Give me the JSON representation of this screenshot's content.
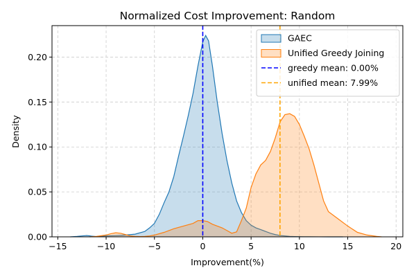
{
  "chart_data": {
    "type": "area",
    "title": "Normalized Cost Improvement: Random",
    "xlabel": "Improvement(%)",
    "ylabel": "Density",
    "xlim": [
      -15.6,
      20.7
    ],
    "ylim": [
      0,
      0.235
    ],
    "xticks": [
      -15,
      -10,
      -5,
      0,
      5,
      10,
      15,
      20
    ],
    "yticks": [
      0.0,
      0.05,
      0.1,
      0.15,
      0.2
    ],
    "ytick_labels": [
      "0.00",
      "0.05",
      "0.10",
      "0.15",
      "0.20"
    ],
    "grid": true,
    "legend_position": "top-right",
    "series": [
      {
        "name": "GAEC",
        "style": "kde-fill",
        "color": "#1f77b4",
        "x": [
          -13.7,
          -13,
          -12.5,
          -12,
          -11.5,
          -11,
          -10,
          -9,
          -8,
          -7,
          -6,
          -5.5,
          -5,
          -4.5,
          -4,
          -3.5,
          -3,
          -2.5,
          -2,
          -1.5,
          -1,
          -0.5,
          0,
          0.3,
          0.6,
          1,
          1.5,
          2,
          2.5,
          3,
          3.5,
          4,
          4.5,
          5,
          5.5,
          6,
          6.5,
          7,
          7.5,
          8,
          8.5,
          9,
          9.5,
          10,
          10.5,
          11,
          12,
          13,
          14,
          14.5
        ],
        "y": [
          0,
          0.0005,
          0.001,
          0.0015,
          0.0008,
          0.0003,
          0.001,
          0.0015,
          0.002,
          0.003,
          0.006,
          0.01,
          0.015,
          0.025,
          0.038,
          0.05,
          0.067,
          0.09,
          0.112,
          0.135,
          0.16,
          0.19,
          0.217,
          0.224,
          0.218,
          0.19,
          0.15,
          0.115,
          0.085,
          0.06,
          0.04,
          0.027,
          0.018,
          0.013,
          0.01,
          0.008,
          0.006,
          0.004,
          0.0025,
          0.0015,
          0.001,
          0.0005,
          0.0003,
          0.0002,
          0.0001,
          0.0001,
          5e-05,
          2e-05,
          1e-05,
          0
        ]
      },
      {
        "name": "Unified Greedy Joining",
        "style": "kde-fill",
        "color": "#ff7f0e",
        "x": [
          -11.7,
          -11,
          -10,
          -9.5,
          -9,
          -8.5,
          -8,
          -7.5,
          -7,
          -6.5,
          -6,
          -5.5,
          -5,
          -4,
          -3,
          -2,
          -1,
          -0.5,
          0,
          0.5,
          1,
          1.5,
          2,
          2.5,
          3,
          3.5,
          4,
          4.5,
          5,
          5.5,
          6,
          6.5,
          7,
          7.5,
          8,
          8.5,
          9,
          9.5,
          10,
          10.5,
          11,
          11.5,
          12,
          12.5,
          13,
          14,
          15,
          16,
          17,
          18,
          18.5
        ],
        "y": [
          0,
          0.0005,
          0.002,
          0.0035,
          0.0045,
          0.004,
          0.0025,
          0.001,
          0.0005,
          0.0003,
          0.0005,
          0.001,
          0.002,
          0.005,
          0.009,
          0.012,
          0.015,
          0.018,
          0.018,
          0.017,
          0.014,
          0.012,
          0.01,
          0.007,
          0.004,
          0.0055,
          0.018,
          0.032,
          0.055,
          0.07,
          0.08,
          0.085,
          0.095,
          0.11,
          0.128,
          0.136,
          0.137,
          0.134,
          0.125,
          0.112,
          0.098,
          0.08,
          0.06,
          0.04,
          0.028,
          0.02,
          0.012,
          0.005,
          0.002,
          0.0005,
          0
        ]
      },
      {
        "name": "greedy mean: 0.00%",
        "style": "vline-dashed",
        "color": "#0000ff",
        "x_value": 0.0
      },
      {
        "name": "unified mean: 7.99%",
        "style": "vline-dashed",
        "color": "#ffa500",
        "x_value": 7.99
      }
    ]
  }
}
